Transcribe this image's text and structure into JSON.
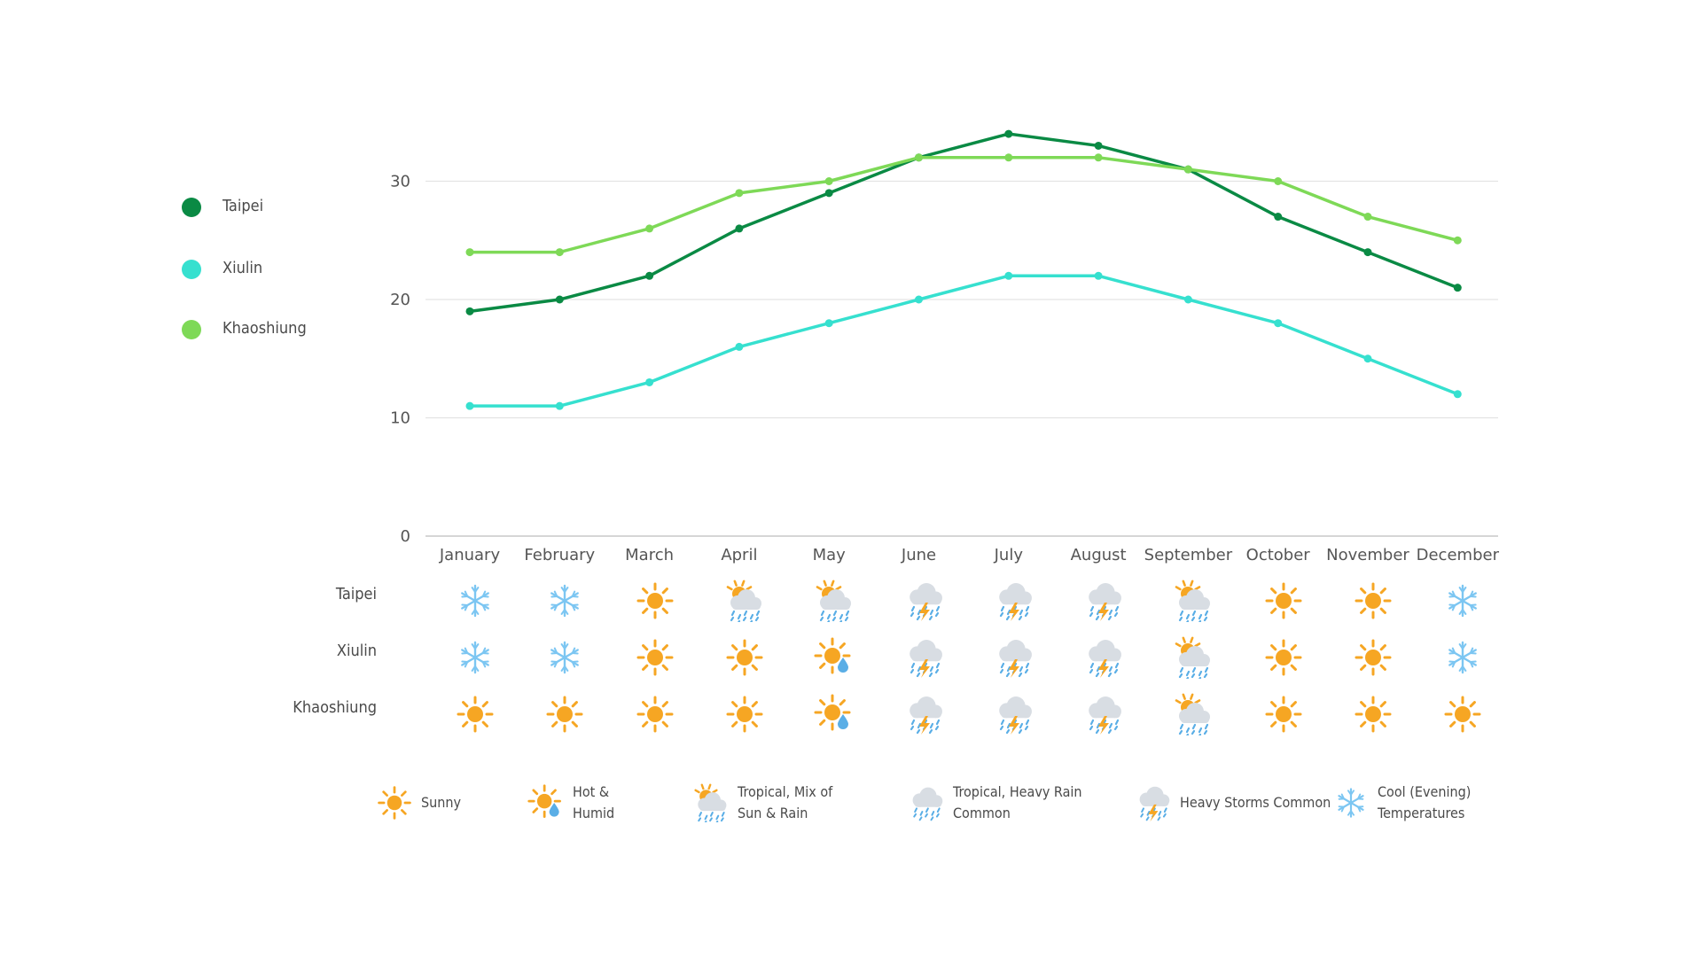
{
  "legend": {
    "items": [
      {
        "label": "Taipei",
        "color": "#0a8a44"
      },
      {
        "label": "Xiulin",
        "color": "#36e0cf"
      },
      {
        "label": "Khaoshiung",
        "color": "#7ed957"
      }
    ]
  },
  "chart_data": {
    "type": "line",
    "categories": [
      "January",
      "February",
      "March",
      "April",
      "May",
      "June",
      "July",
      "August",
      "September",
      "October",
      "November",
      "December"
    ],
    "y_ticks": [
      0,
      10,
      20,
      30
    ],
    "ylim": [
      0,
      35
    ],
    "grid": true,
    "legend_placement": "left",
    "series": [
      {
        "name": "Taipei",
        "color": "#0a8a44",
        "values": [
          19,
          20,
          22,
          26,
          29,
          32,
          34,
          33,
          31,
          27,
          24,
          21
        ]
      },
      {
        "name": "Xiulin",
        "color": "#36e0cf",
        "values": [
          11,
          11,
          13,
          16,
          18,
          20,
          22,
          22,
          20,
          18,
          15,
          12
        ]
      },
      {
        "name": "Khaoshiung",
        "color": "#7ed957",
        "values": [
          24,
          24,
          26,
          29,
          30,
          32,
          32,
          32,
          31,
          30,
          27,
          25
        ]
      }
    ]
  },
  "weather": {
    "rows": [
      {
        "city": "Taipei",
        "icons": [
          "snowflake-icon",
          "snowflake-icon",
          "sun-icon",
          "sun-cloud-rain-icon",
          "sun-cloud-rain-icon",
          "storm-icon",
          "storm-icon",
          "storm-icon",
          "sun-cloud-rain-icon",
          "sun-icon",
          "sun-icon",
          "snowflake-icon"
        ]
      },
      {
        "city": "Xiulin",
        "icons": [
          "snowflake-icon",
          "snowflake-icon",
          "sun-icon",
          "sun-icon",
          "hot-humid-icon",
          "storm-icon",
          "storm-icon",
          "storm-icon",
          "sun-cloud-rain-icon",
          "sun-icon",
          "sun-icon",
          "snowflake-icon"
        ]
      },
      {
        "city": "Khaoshiung",
        "icons": [
          "sun-icon",
          "sun-icon",
          "sun-icon",
          "sun-icon",
          "hot-humid-icon",
          "storm-icon",
          "storm-icon",
          "storm-icon",
          "sun-cloud-rain-icon",
          "sun-icon",
          "sun-icon",
          "sun-icon"
        ]
      }
    ]
  },
  "key": [
    {
      "icon": "sun-icon",
      "lines": [
        "Sunny"
      ]
    },
    {
      "icon": "hot-humid-icon",
      "lines": [
        "Hot &",
        "Humid"
      ]
    },
    {
      "icon": "sun-cloud-rain-icon",
      "lines": [
        "Tropical, Mix of",
        "Sun & Rain"
      ]
    },
    {
      "icon": "cloud-rain-icon",
      "lines": [
        "Tropical, Heavy  Rain",
        "Common"
      ]
    },
    {
      "icon": "storm-icon",
      "lines": [
        "Heavy Storms Common"
      ]
    },
    {
      "icon": "snowflake-icon",
      "lines": [
        "Cool (Evening)",
        "Temperatures"
      ]
    }
  ]
}
